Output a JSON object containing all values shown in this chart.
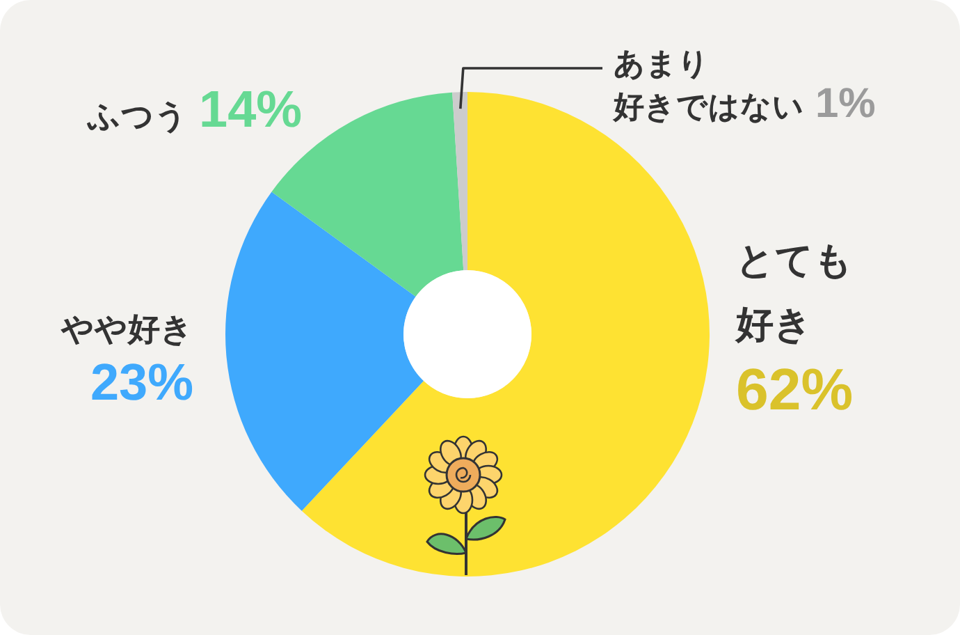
{
  "chart_data": {
    "type": "donut",
    "categories": [
      "とても好き",
      "やや好き",
      "ふつう",
      "あまり好きではない"
    ],
    "values": [
      62,
      23,
      14,
      1
    ],
    "colors": [
      "#fee232",
      "#3fa9fd",
      "#66d993",
      "#cccccc"
    ],
    "value_labels": [
      "62%",
      "23%",
      "14%",
      "1%"
    ]
  }
}
